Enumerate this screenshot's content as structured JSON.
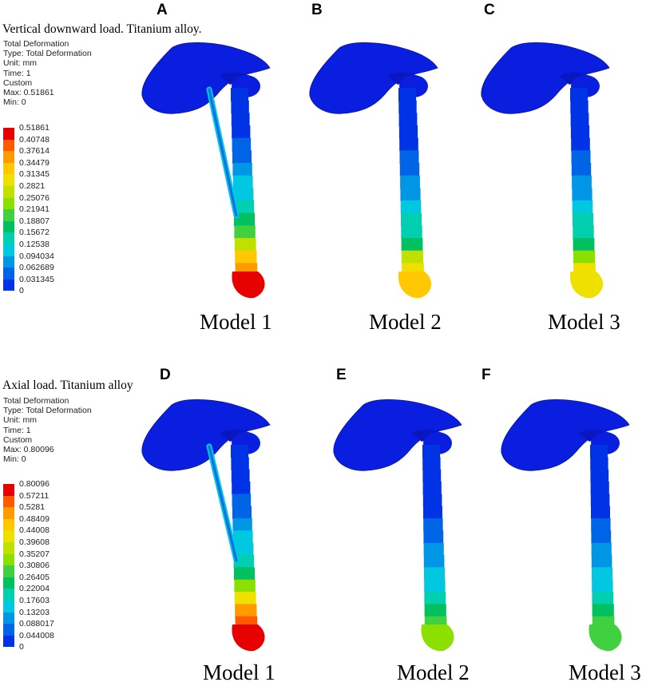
{
  "panels": [
    {
      "letter": "A"
    },
    {
      "letter": "B"
    },
    {
      "letter": "C"
    },
    {
      "letter": "D"
    },
    {
      "letter": "E"
    },
    {
      "letter": "F"
    }
  ],
  "top": {
    "title": "Vertical downward load. Titanium alloy.",
    "info": [
      "Total Deformation",
      "Type: Total Deformation",
      "Unit: mm",
      "Time: 1",
      "Custom",
      "Max: 0.51861",
      "Min: 0"
    ],
    "legend": [
      "0.51861",
      "0.40748",
      "0.37614",
      "0.34479",
      "0.31345",
      "0.2821",
      "0.25076",
      "0.21941",
      "0.18807",
      "0.15672",
      "0.12538",
      "0.094034",
      "0.062689",
      "0.031345",
      "0"
    ],
    "models": [
      "Model 1",
      "Model 2",
      "Model 3"
    ]
  },
  "bottom": {
    "title": "Axial load. Titanium alloy",
    "info": [
      "Total Deformation",
      "Type: Total Deformation",
      "Unit: mm",
      "Time: 1",
      "Custom",
      "Max: 0.80096",
      "Min: 0"
    ],
    "legend": [
      "0.80096",
      "0.57211",
      "0.5281",
      "0.48409",
      "0.44008",
      "0.39608",
      "0.35207",
      "0.30806",
      "0.26405",
      "0.22004",
      "0.17603",
      "0.13203",
      "0.088017",
      "0.044008",
      "0"
    ],
    "models": [
      "Model 1",
      "Model 2",
      "Model 3"
    ]
  },
  "colors": {
    "scale": [
      "#e60000",
      "#ff5a00",
      "#ff9a00",
      "#ffc800",
      "#f0e000",
      "#c0e000",
      "#8ce000",
      "#40d040",
      "#00c060",
      "#00d0b0",
      "#00c8e0",
      "#0096e6",
      "#0064e6",
      "#0032e6"
    ],
    "bone_base": "#0a1ee0"
  },
  "icons": [
    "scapula-humerus-model"
  ]
}
